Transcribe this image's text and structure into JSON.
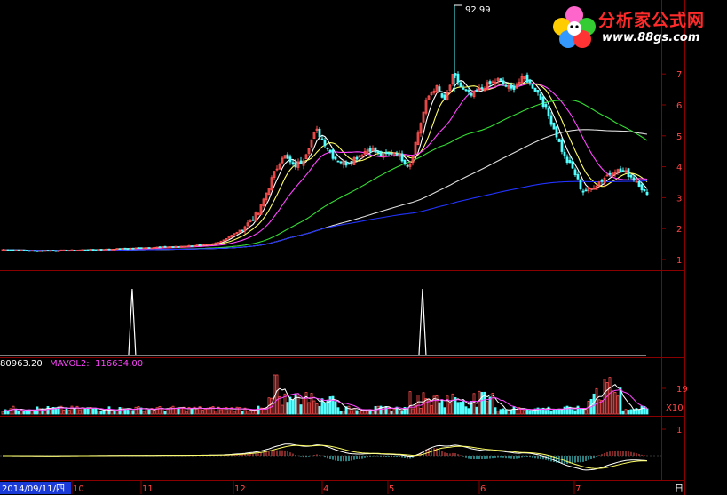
{
  "logo": {
    "title": "分析家公式网",
    "url": "www.88gs.com"
  },
  "colors": {
    "bg": "#000000",
    "frame": "#8a0000",
    "up": "#ff5050",
    "down": "#54ffff",
    "ma_white": "#ffffff",
    "ma_yellow": "#ffff66",
    "ma_magenta": "#ff44ff",
    "ma_green": "#33dd33",
    "ma_gray": "#dddddd",
    "ma_blue": "#2233ff",
    "axis_text": "#ff4444"
  },
  "axis": {
    "date_label": "2014/09/11/四",
    "month_labels": [
      "10",
      "11",
      "12",
      "4",
      "5",
      "6",
      "7"
    ],
    "right_corner": "日",
    "price_ticks": [
      "7",
      "6",
      "5",
      "4",
      "3",
      "2",
      "1"
    ],
    "volume_tick": "19",
    "volume_unit": "X10",
    "macd_tick": "1"
  },
  "volume_legend": {
    "mavol1": "80963.20",
    "mavol2_label": "MAVOL2:",
    "mavol2": "116634.00"
  },
  "chart_data": {
    "type": "candlestick",
    "peak_label": "92.99",
    "price_range": [
      0.5,
      7.7
    ],
    "signal_spikes": [
      {
        "position": 0.204,
        "value": 1
      },
      {
        "position": 0.652,
        "value": 1
      }
    ],
    "grid": false
  }
}
